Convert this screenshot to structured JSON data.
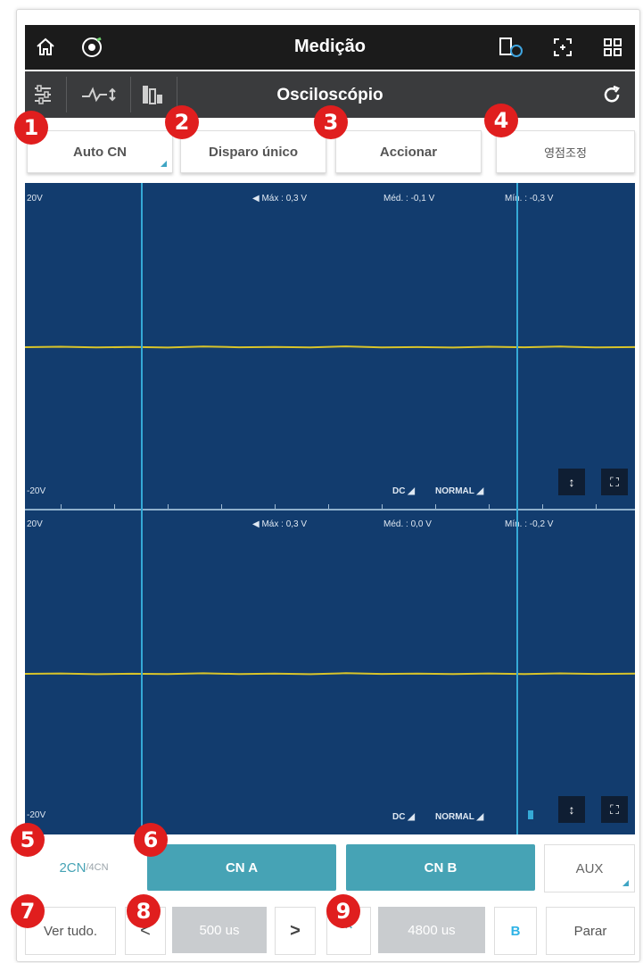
{
  "header": {
    "title": "Medição"
  },
  "subheader": {
    "title": "Osciloscópio"
  },
  "actions": {
    "auto_cn": "Auto CN",
    "single_trigger": "Disparo único",
    "activate": "Accionar",
    "zero_adjust": "영점조정"
  },
  "badges": [
    "1",
    "2",
    "3",
    "4",
    "5",
    "6",
    "7",
    "8",
    "9"
  ],
  "channel1": {
    "scale_top": "20V",
    "scale_bottom": "-20V",
    "max": "Máx : 0,3 V",
    "avg": "Méd. : -0,1 V",
    "min": "Mín. : -0,3 V",
    "coupling": "DC",
    "mode": "NORMAL"
  },
  "channel2": {
    "scale_top": "20V",
    "scale_bottom": "-20V",
    "max": "Máx : 0,3 V",
    "avg": "Méd. : 0,0 V",
    "min": "Mín. : -0,2 V",
    "coupling": "DC",
    "mode": "NORMAL"
  },
  "channels": {
    "count_label_main": "2CN",
    "count_label_alt": "/4CN",
    "cn_a": "CN A",
    "cn_b": "CN B",
    "aux": "AUX"
  },
  "bottom": {
    "view_all": "Ver tudo.",
    "prev": "<",
    "timebase": "500 us",
    "next": ">",
    "trigger_symbol": "⌃",
    "trigger_time": "4800 us",
    "cursor_b": "B",
    "stop": "Parar"
  },
  "colors": {
    "scope_bg": "#123c6e",
    "trace": "#d8c42a",
    "accent": "#46a3b5",
    "badge": "#e01e1e"
  }
}
